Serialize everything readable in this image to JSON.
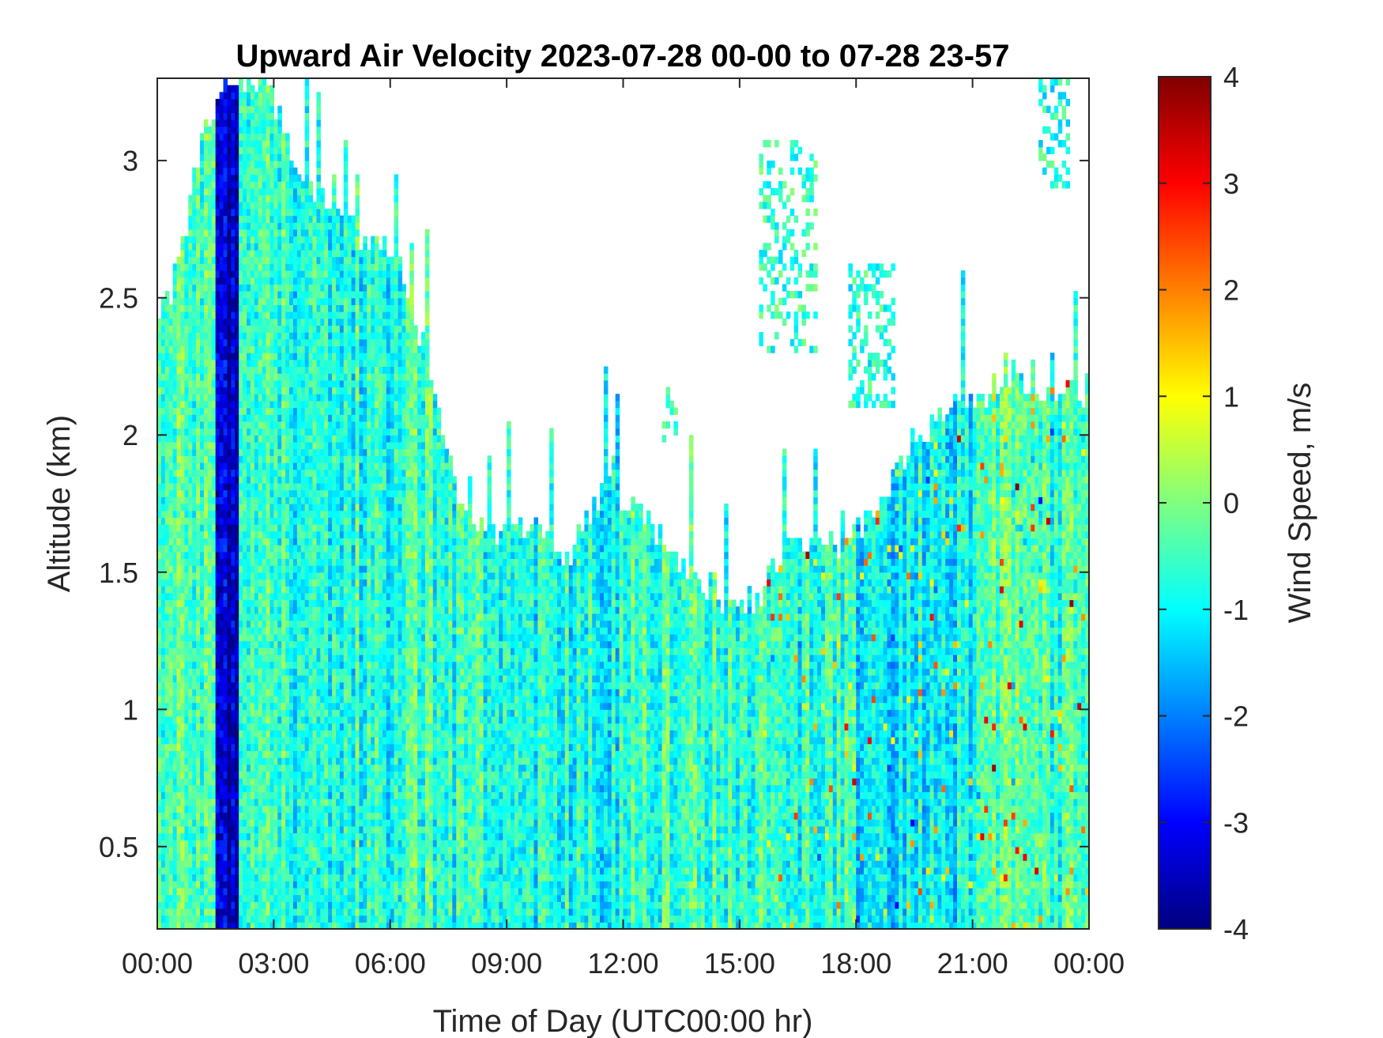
{
  "chart_data": {
    "type": "heatmap",
    "title": "Upward Air Velocity 2023-07-28 00-00 to 07-28 23-57",
    "xlabel": "Time of Day (UTC00:00 hr)",
    "ylabel": "Altitude (km)",
    "x_unit": "hours",
    "xlim": [
      0,
      24
    ],
    "ylim": [
      0.2,
      3.3
    ],
    "x_ticks": [
      0,
      3,
      6,
      9,
      12,
      15,
      18,
      21,
      24
    ],
    "x_tick_labels": [
      "00:00",
      "03:00",
      "06:00",
      "09:00",
      "12:00",
      "15:00",
      "18:00",
      "21:00",
      "00:00"
    ],
    "y_ticks": [
      0.5,
      1,
      1.5,
      2,
      2.5,
      3
    ],
    "y_tick_labels": [
      "0.5",
      "1",
      "1.5",
      "2",
      "2.5",
      "3"
    ],
    "colorbar": {
      "label": "Wind Speed, m/s",
      "range": [
        -4,
        4
      ],
      "ticks": [
        -4,
        -3,
        -2,
        -1,
        0,
        1,
        2,
        3,
        4
      ],
      "tick_labels": [
        "-4",
        "-3",
        "-2",
        "-1",
        "0",
        "1",
        "2",
        "3",
        "4"
      ],
      "colormap": "jet"
    },
    "grid": false,
    "data_top_km": [
      [
        0.0,
        2.4
      ],
      [
        0.5,
        2.6
      ],
      [
        1.0,
        3.0
      ],
      [
        1.5,
        3.2
      ],
      [
        2.0,
        3.3
      ],
      [
        2.5,
        3.3
      ],
      [
        3.0,
        3.2
      ],
      [
        3.5,
        3.0
      ],
      [
        4.0,
        2.9
      ],
      [
        4.5,
        2.8
      ],
      [
        5.0,
        2.75
      ],
      [
        5.5,
        2.7
      ],
      [
        6.0,
        2.65
      ],
      [
        6.5,
        2.5
      ],
      [
        7.0,
        2.2
      ],
      [
        7.3,
        2.0
      ],
      [
        7.6,
        1.8
      ],
      [
        8.0,
        1.7
      ],
      [
        8.5,
        1.65
      ],
      [
        9.0,
        1.65
      ],
      [
        9.5,
        1.65
      ],
      [
        10.0,
        1.6
      ],
      [
        10.5,
        1.55
      ],
      [
        11.0,
        1.65
      ],
      [
        11.5,
        1.8
      ],
      [
        12.0,
        1.75
      ],
      [
        12.5,
        1.7
      ],
      [
        13.0,
        1.6
      ],
      [
        13.5,
        1.5
      ],
      [
        14.0,
        1.45
      ],
      [
        14.5,
        1.4
      ],
      [
        15.0,
        1.35
      ],
      [
        15.5,
        1.4
      ],
      [
        16.0,
        1.55
      ],
      [
        16.5,
        1.6
      ],
      [
        17.0,
        1.6
      ],
      [
        17.5,
        1.6
      ],
      [
        18.0,
        1.65
      ],
      [
        18.5,
        1.7
      ],
      [
        19.0,
        1.85
      ],
      [
        19.5,
        2.0
      ],
      [
        20.0,
        2.05
      ],
      [
        20.5,
        2.1
      ],
      [
        21.0,
        2.1
      ],
      [
        21.5,
        2.15
      ],
      [
        22.0,
        2.15
      ],
      [
        22.5,
        2.2
      ],
      [
        23.0,
        2.15
      ],
      [
        23.5,
        2.15
      ],
      [
        24.0,
        2.15
      ]
    ],
    "bands": [
      {
        "x_range": [
          0.0,
          1.5
        ],
        "mean_velocity": -0.5
      },
      {
        "x_range": [
          1.5,
          2.1
        ],
        "mean_velocity": -3.5
      },
      {
        "x_range": [
          2.1,
          6.0
        ],
        "mean_velocity": -0.7
      },
      {
        "x_range": [
          6.0,
          9.0
        ],
        "mean_velocity": -0.6
      },
      {
        "x_range": [
          9.0,
          12.0
        ],
        "mean_velocity": -0.8
      },
      {
        "x_range": [
          12.0,
          15.0
        ],
        "mean_velocity": -0.5
      },
      {
        "x_range": [
          15.0,
          18.0
        ],
        "mean_velocity": -0.6
      },
      {
        "x_range": [
          18.0,
          21.0
        ],
        "mean_velocity": -1.0
      },
      {
        "x_range": [
          21.0,
          24.0
        ],
        "mean_velocity": -0.5
      }
    ],
    "elevated_patches": [
      {
        "x_range": [
          15.5,
          17.0
        ],
        "y_range": [
          2.3,
          3.05
        ],
        "mean_velocity": -0.6
      },
      {
        "x_range": [
          17.8,
          19.0
        ],
        "y_range": [
          2.1,
          2.6
        ],
        "mean_velocity": -0.7
      },
      {
        "x_range": [
          22.7,
          23.5
        ],
        "y_range": [
          2.9,
          3.3
        ],
        "mean_velocity": -0.8
      },
      {
        "x_range": [
          13.0,
          13.3
        ],
        "y_range": [
          1.95,
          2.15
        ],
        "mean_velocity": -0.6
      }
    ],
    "colors": {
      "axis": "#262626",
      "background": "#ffffff"
    }
  }
}
